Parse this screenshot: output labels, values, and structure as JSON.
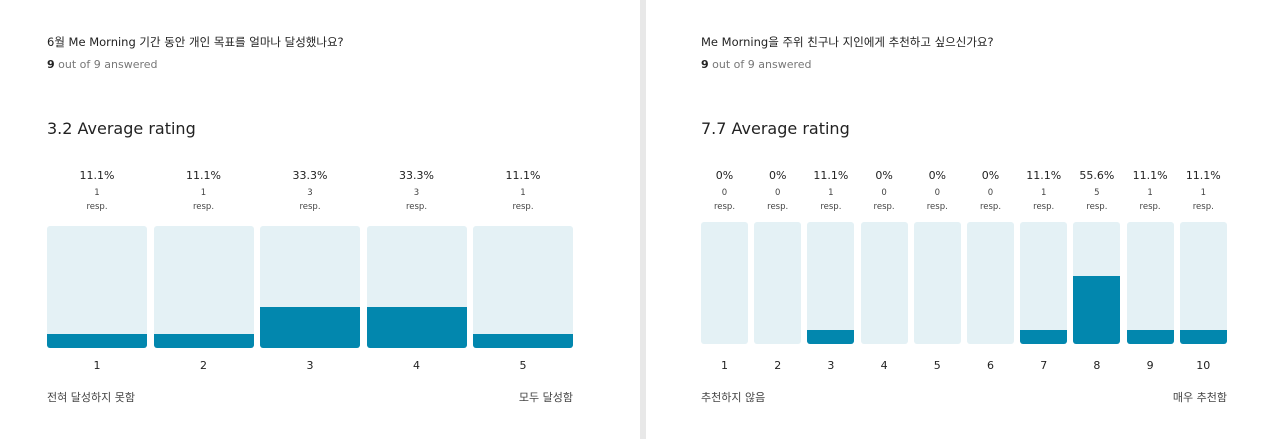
{
  "chart_data": [
    {
      "type": "bar",
      "title": "6월 Me Morning 기간 동안 개인 목표를 얼마나 달성했나요?",
      "answered": {
        "count": "9",
        "text": " out of 9 answered"
      },
      "average_label": "3.2 Average rating",
      "categories": [
        "1",
        "2",
        "3",
        "4",
        "5"
      ],
      "percent_labels": [
        "11.1%",
        "11.1%",
        "33.3%",
        "33.3%",
        "11.1%"
      ],
      "values": [
        11.1,
        11.1,
        33.3,
        33.3,
        11.1
      ],
      "counts": [
        "1",
        "1",
        "3",
        "3",
        "1"
      ],
      "count_unit": "resp.",
      "ylim": [
        0,
        100
      ],
      "scale_low_label": "전혀 달성하지 못함",
      "scale_high_label": "모두 달성함",
      "colors": {
        "track": "#e4f1f5",
        "fill": "#0287ae"
      }
    },
    {
      "type": "bar",
      "title": "Me Morning을 주위 친구나 지인에게 추천하고 싶으신가요?",
      "answered": {
        "count": "9",
        "text": " out of 9 answered"
      },
      "average_label": "7.7 Average rating",
      "categories": [
        "1",
        "2",
        "3",
        "4",
        "5",
        "6",
        "7",
        "8",
        "9",
        "10"
      ],
      "percent_labels": [
        "0%",
        "0%",
        "11.1%",
        "0%",
        "0%",
        "0%",
        "11.1%",
        "55.6%",
        "11.1%",
        "11.1%"
      ],
      "values": [
        0,
        0,
        11.1,
        0,
        0,
        0,
        11.1,
        55.6,
        11.1,
        11.1
      ],
      "counts": [
        "0",
        "0",
        "1",
        "0",
        "0",
        "0",
        "1",
        "5",
        "1",
        "1"
      ],
      "count_unit": "resp.",
      "ylim": [
        0,
        100
      ],
      "scale_low_label": "추천하지 않음",
      "scale_high_label": "매우 추천함",
      "colors": {
        "track": "#e4f1f5",
        "fill": "#0287ae"
      }
    }
  ]
}
